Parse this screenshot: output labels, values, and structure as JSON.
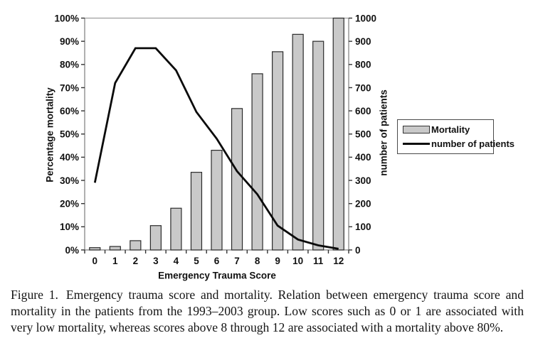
{
  "figure": {
    "caption_prefix": "Figure 1.",
    "caption_text": "Emergency trauma score and mortality. Relation between emergency trauma score and mortality in the patients from the 1993–2003 group. Low scores such as 0 or 1 are associated with very low mortality, whereas scores above 8 through 12 are associated with a mortality above 80%."
  },
  "chart_data": {
    "type": "combo",
    "categories": [
      0,
      1,
      2,
      3,
      4,
      5,
      6,
      7,
      8,
      9,
      10,
      11,
      12
    ],
    "series": [
      {
        "name": "Mortality",
        "type": "bar",
        "axis": "left",
        "unit": "%",
        "values": [
          1,
          1.5,
          4,
          10.5,
          18,
          33.5,
          43,
          61,
          76,
          85.5,
          93,
          90,
          100
        ]
      },
      {
        "name": "number of patients",
        "type": "line",
        "axis": "right",
        "values": [
          290,
          720,
          870,
          870,
          775,
          595,
          480,
          340,
          240,
          105,
          45,
          20,
          5
        ]
      }
    ],
    "x_axis": {
      "label": "Emergency Trauma Score"
    },
    "left_axis": {
      "label": "Percentage mortality",
      "min": 0,
      "max": 100,
      "step": 10,
      "format": "percent"
    },
    "right_axis": {
      "label": "number of patients",
      "min": 0,
      "max": 1000,
      "step": 100
    },
    "grid": "top-line-only",
    "legend_position": "right-middle",
    "colors": {
      "bar_fill": "#c9c9c9",
      "bar_border": "#2b2b2b",
      "line": "#0b0b0b",
      "grid": "#9e9e9e",
      "axis": "#7d7d7d",
      "tick": "#333333"
    }
  }
}
